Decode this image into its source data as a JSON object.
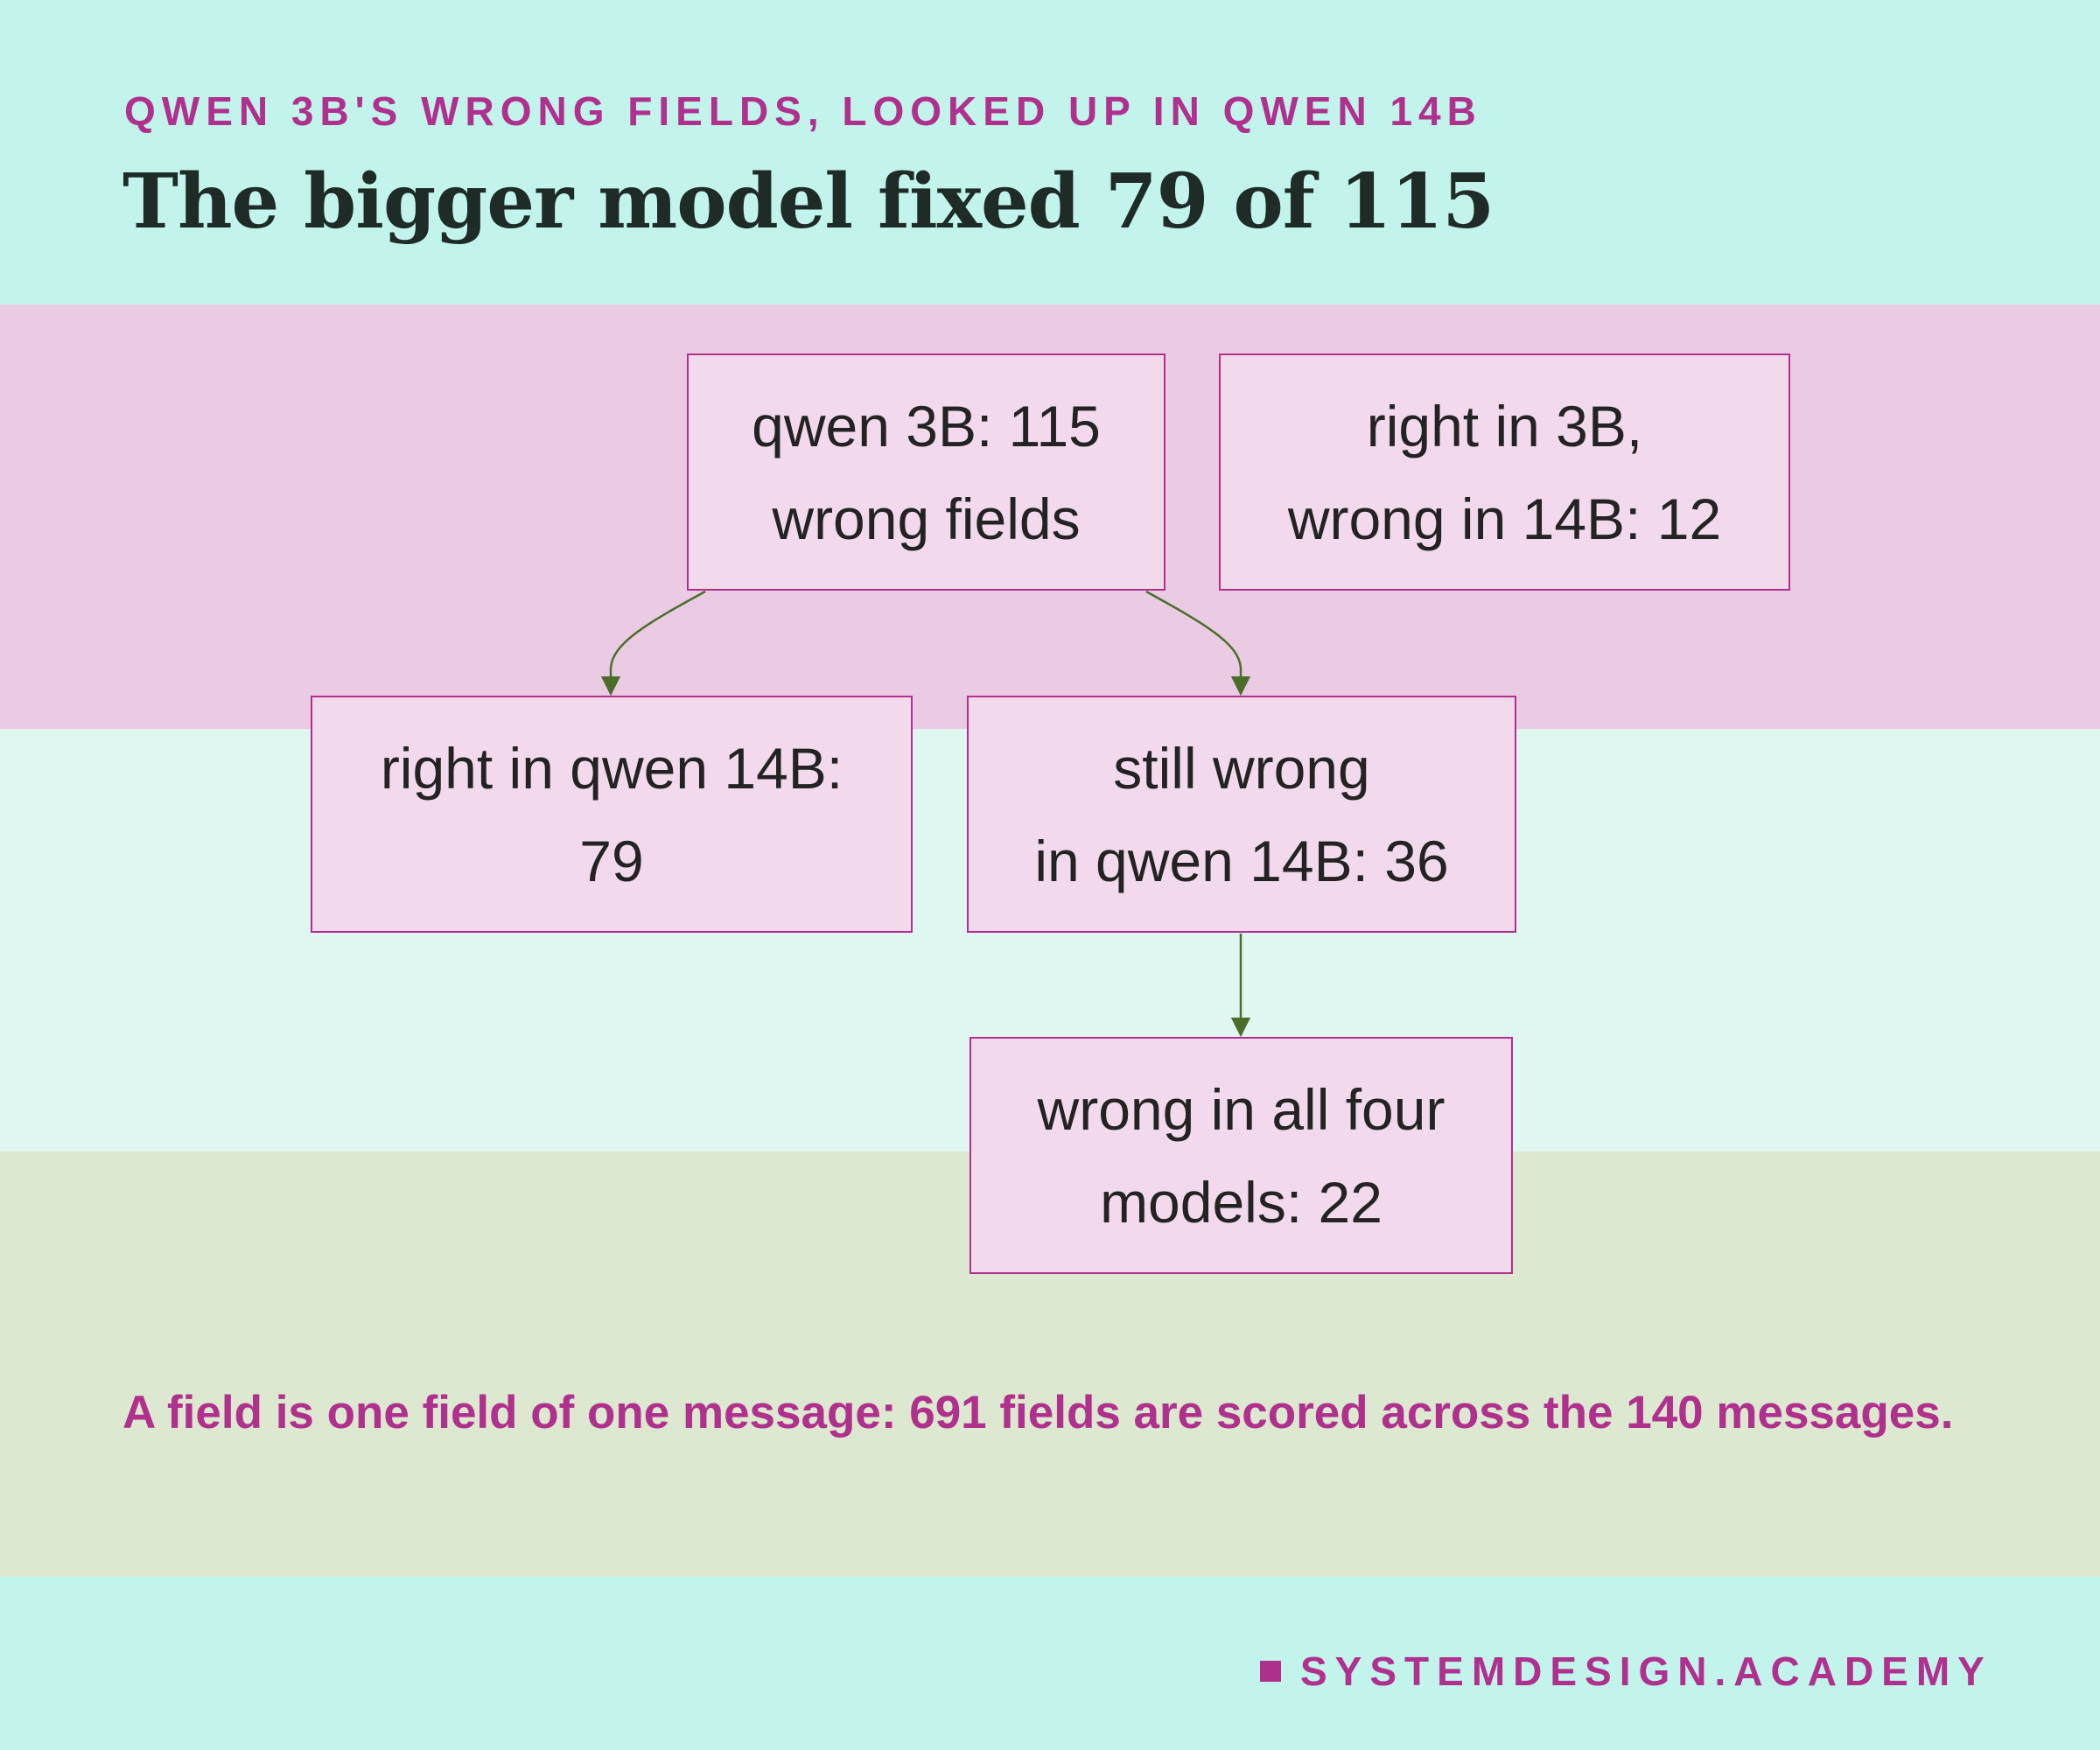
{
  "header": {
    "kicker": "QWEN 3B'S WRONG FIELDS, LOOKED UP IN QWEN 14B",
    "title": "The bigger model fixed 79 of 115"
  },
  "diagram": {
    "nodes": {
      "root": {
        "line1": "qwen 3B: 115",
        "line2": "wrong fields"
      },
      "side": {
        "line1": "right in 3B,",
        "line2": "wrong in 14B: 12"
      },
      "right": {
        "line1": "right in qwen 14B:",
        "line2": "79"
      },
      "still": {
        "line1": "still wrong",
        "line2": "in qwen 14B: 36"
      },
      "all": {
        "line1": "wrong in all four",
        "line2": "models: 22"
      }
    },
    "edges": [
      {
        "from": "root",
        "to": "right"
      },
      {
        "from": "root",
        "to": "still"
      },
      {
        "from": "still",
        "to": "all"
      }
    ]
  },
  "footnote": "A field is one field of one message: 691 fields are scored across the 140 messages.",
  "brand": "SYSTEMDESIGN.ACADEMY",
  "colors": {
    "background": "#c2f4eb",
    "band_top": "#ebcbe3",
    "band_mid": "#e0f6f1",
    "band_bottom": "#dce8cf",
    "accent": "#b0308e",
    "node_fill": "#f2daec",
    "edge": "#4a6e2a",
    "title_text": "#1e2b27"
  }
}
